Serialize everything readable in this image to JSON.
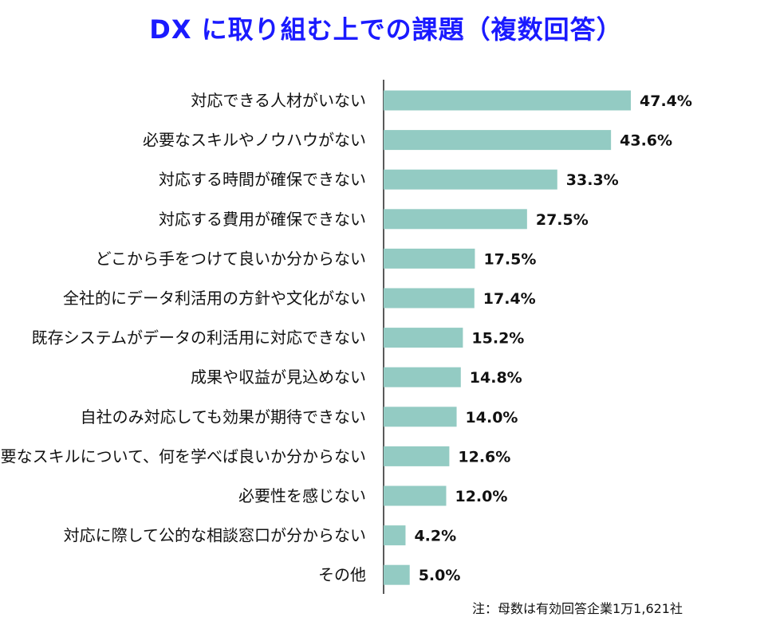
{
  "chart_data": {
    "type": "bar",
    "orientation": "horizontal",
    "title": "DX に取り組む上での課題（複数回答）",
    "categories": [
      "対応できる人材がいない",
      "必要なスキルやノウハウがない",
      "対応する時間が確保できない",
      "対応する費用が確保できない",
      "どこから手をつけて良いか分からない",
      "全社的にデータ利活用の方針や文化がない",
      "既存システムがデータの利活用に対応できない",
      "成果や収益が見込めない",
      "自社のみ対応しても効果が期待できない",
      "必要なスキルについて、何を学べば良いか分からない",
      "必要性を感じない",
      "対応に際して公的な相談窓口が分からない",
      "その他"
    ],
    "values": [
      47.4,
      43.6,
      33.3,
      27.5,
      17.5,
      17.4,
      15.2,
      14.8,
      14.0,
      12.6,
      12.0,
      4.2,
      5.0
    ],
    "value_labels": [
      "47.4%",
      "43.6%",
      "33.3%",
      "27.5%",
      "17.5%",
      "17.4%",
      "15.2%",
      "14.8%",
      "14.0%",
      "12.6%",
      "12.0%",
      "4.2%",
      "5.0%"
    ],
    "xlim": [
      0,
      100
    ],
    "grid": false,
    "bar_color": "#93cbc3",
    "note": "注：母数は有効回答企業1万1,621社"
  }
}
